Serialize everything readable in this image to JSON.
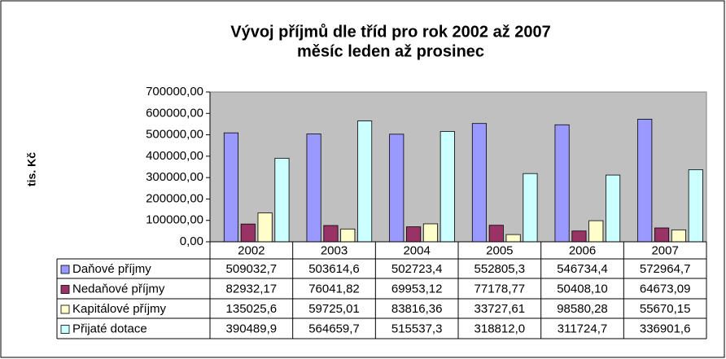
{
  "chart_data": {
    "type": "bar",
    "title": "Vývoj příjmů dle tříd pro rok 2002 až 2007",
    "subtitle": "měsíc leden až prosinec",
    "ylabel": "tis. Kč",
    "categories": [
      "2002",
      "2003",
      "2004",
      "2005",
      "2006",
      "2007"
    ],
    "series": [
      {
        "name": "Daňové příjmy",
        "color": "#9999ff",
        "values": [
          509032.7,
          503614.6,
          502723.4,
          552805.3,
          546734.4,
          572964.7
        ],
        "value_labels": [
          "509032,7",
          "503614,6",
          "502723,4",
          "552805,3",
          "546734,4",
          "572964,7"
        ]
      },
      {
        "name": "Nedaňové příjmy",
        "color": "#993366",
        "values": [
          82932.17,
          76041.82,
          69953.12,
          77178.77,
          50408.1,
          64673.09
        ],
        "value_labels": [
          "82932,17",
          "76041,82",
          "69953,12",
          "77178,77",
          "50408,10",
          "64673,09"
        ]
      },
      {
        "name": "Kapitálové příjmy",
        "color": "#ffffcc",
        "values": [
          135025.6,
          59725.01,
          83816.36,
          33727.61,
          98580.28,
          55670.15
        ],
        "value_labels": [
          "135025,6",
          "59725,01",
          "83816,36",
          "33727,61",
          "98580,28",
          "55670,15"
        ]
      },
      {
        "name": "Přijaté dotace",
        "color": "#ccffff",
        "values": [
          390489.9,
          564659.7,
          515537.3,
          318812,
          311724.7,
          336901.6
        ],
        "value_labels": [
          "390489,9",
          "564659,7",
          "515537,3",
          "318812,0",
          "311724,7",
          "336901,6"
        ]
      }
    ],
    "ylim": [
      0,
      700000
    ],
    "yticks": [
      {
        "value": 0,
        "label": "0,00"
      },
      {
        "value": 100000,
        "label": "100000,00"
      },
      {
        "value": 200000,
        "label": "200000,00"
      },
      {
        "value": 300000,
        "label": "300000,00"
      },
      {
        "value": 400000,
        "label": "400000,00"
      },
      {
        "value": 500000,
        "label": "500000,00"
      },
      {
        "value": 600000,
        "label": "600000,00"
      },
      {
        "value": 700000,
        "label": "700000,00"
      }
    ],
    "plot_background": "#c0c0c0"
  }
}
